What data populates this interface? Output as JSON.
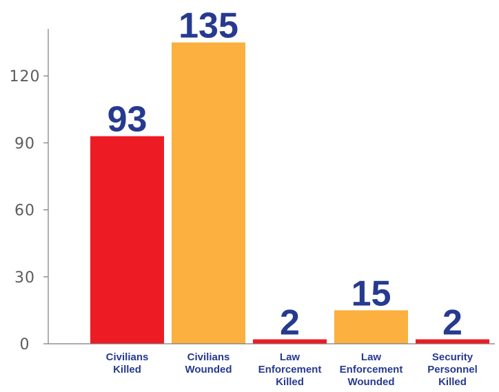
{
  "chart_data": {
    "type": "bar",
    "categories": [
      "Civilians Killed",
      "Civilians Wounded",
      "Law Enforcement Killed",
      "Law Enforcement Wounded",
      "Security Personnel Killed"
    ],
    "category_label_lines": [
      [
        "Civilians",
        "Killed"
      ],
      [
        "Civilians",
        "Wounded"
      ],
      [
        "Law",
        "Enforcement",
        "Killed"
      ],
      [
        "Law",
        "Enforcement",
        "Wounded"
      ],
      [
        "Security",
        "Personnel",
        "Killed"
      ]
    ],
    "values": [
      93,
      135,
      2,
      15,
      2
    ],
    "data_labels": [
      "93",
      "135",
      "2",
      "15",
      "2"
    ],
    "bar_colors": [
      "#ed1c24",
      "#fbb040",
      "#ed1c24",
      "#fbb040",
      "#ed1c24"
    ],
    "yticks": [
      0,
      30,
      60,
      90,
      120
    ],
    "ytick_labels": [
      "0",
      "30",
      "60",
      "90",
      "120"
    ],
    "ylim": [
      0,
      140
    ],
    "grid": false,
    "legend": "none",
    "title": "",
    "xlabel": "",
    "ylabel": ""
  },
  "colors": {
    "label_text": "#263a8f",
    "axis": "#7a7a7a",
    "tick_text": "#5c5c5c"
  }
}
